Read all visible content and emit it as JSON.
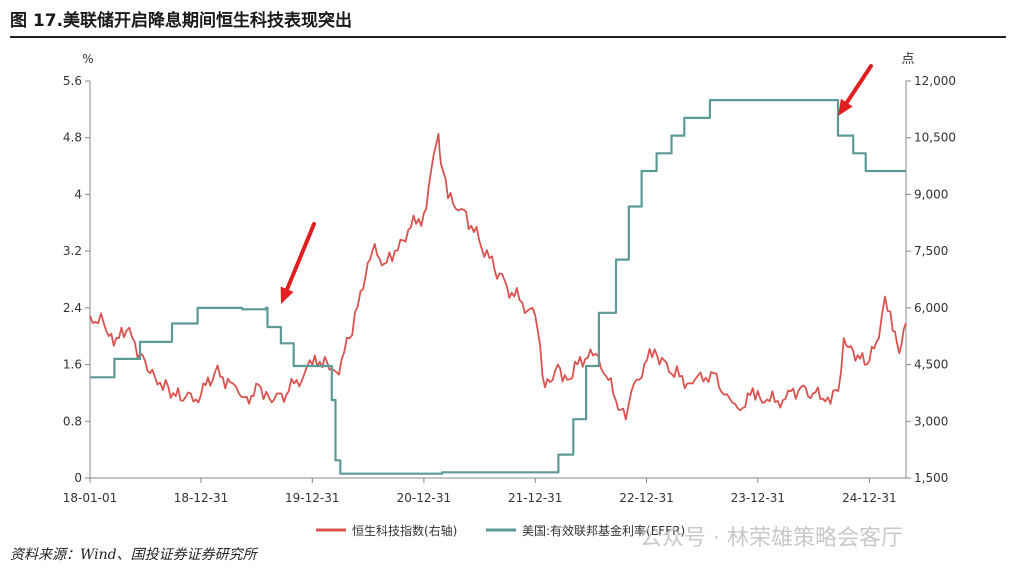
{
  "header": {
    "title": "图 17.美联储开启降息期间恒生科技表现突出"
  },
  "footer": {
    "source": "资料来源：Wind、国投证券证券研究所",
    "watermark": "公众号 · 林荣雄策略会客厅"
  },
  "colors": {
    "hstech": "#d9534f",
    "effr": "#5b9a97",
    "axis": "#888888",
    "arrow": "#e02020"
  },
  "chart_data": {
    "type": "line",
    "left_axis_unit": "%",
    "right_axis_unit": "点",
    "ylim_left": [
      0,
      5.6
    ],
    "ylim_right": [
      1500,
      12000
    ],
    "yticks_left": [
      "0",
      "0.8",
      "1.6",
      "2.4",
      "3.2",
      "4",
      "4.8",
      "5.6"
    ],
    "yticks_right": [
      "1,500",
      "3,000",
      "4,500",
      "6,000",
      "7,500",
      "9,000",
      "10,500",
      "12,000"
    ],
    "x_ticks": [
      "18-01-01",
      "18-12-31",
      "19-12-31",
      "20-12-31",
      "21-12-31",
      "22-12-31",
      "23-12-31",
      "24-12-31"
    ],
    "xlim": [
      "2018-01-01",
      "2025-04-30"
    ],
    "legend_position": "bottom",
    "series": [
      {
        "name": "恒生科技指数(右轴)",
        "axis": "right",
        "x": [
          "2018-01-01",
          "2018-02-15",
          "2018-03-20",
          "2018-05-01",
          "2018-06-15",
          "2018-08-01",
          "2018-09-15",
          "2018-10-25",
          "2018-12-31",
          "2019-02-15",
          "2019-04-15",
          "2019-05-30",
          "2019-07-15",
          "2019-08-20",
          "2019-10-15",
          "2019-12-31",
          "2020-02-10",
          "2020-03-19",
          "2020-05-01",
          "2020-06-15",
          "2020-07-15",
          "2020-08-31",
          "2020-10-15",
          "2020-12-31",
          "2021-02-17",
          "2021-02-25",
          "2021-03-20",
          "2021-05-10",
          "2021-06-30",
          "2021-08-20",
          "2021-10-15",
          "2021-12-31",
          "2022-02-01",
          "2022-03-15",
          "2022-04-15",
          "2022-06-30",
          "2022-08-20",
          "2022-10-24",
          "2022-11-20",
          "2023-01-27",
          "2023-03-15",
          "2023-05-31",
          "2023-07-31",
          "2023-09-30",
          "2023-10-26",
          "2023-12-31",
          "2024-01-22",
          "2024-03-31",
          "2024-05-20",
          "2024-07-31",
          "2024-09-20",
          "2024-10-08",
          "2024-11-15",
          "2024-12-31",
          "2025-01-31",
          "2025-02-20",
          "2025-03-10",
          "2025-04-08",
          "2025-04-30"
        ],
        "y": [
          5800,
          5600,
          5000,
          5400,
          4800,
          4200,
          3900,
          3550,
          3700,
          4300,
          4000,
          3650,
          3900,
          3500,
          3800,
          4500,
          4700,
          4300,
          5200,
          6500,
          7500,
          7200,
          7800,
          8500,
          10600,
          9800,
          8900,
          8600,
          7800,
          7000,
          6400,
          5800,
          3900,
          4500,
          4100,
          4900,
          4200,
          3050,
          4000,
          4900,
          4300,
          4000,
          4300,
          3600,
          3350,
          3800,
          3500,
          3600,
          3900,
          3600,
          3800,
          5200,
          4600,
          4600,
          5200,
          6300,
          5900,
          4800,
          5600
        ]
      },
      {
        "name": "美国:有效联邦基金利率(EFFR)",
        "axis": "left",
        "x": [
          "2018-01-01",
          "2018-02-01",
          "2018-03-22",
          "2018-06-14",
          "2018-09-27",
          "2018-12-20",
          "2019-05-15",
          "2019-08-01",
          "2019-08-06",
          "2019-09-19",
          "2019-10-31",
          "2020-03-04",
          "2020-03-16",
          "2020-04-01",
          "2021-03-01",
          "2022-03-17",
          "2022-05-05",
          "2022-06-16",
          "2022-07-28",
          "2022-09-22",
          "2022-11-03",
          "2022-12-15",
          "2023-02-02",
          "2023-03-23",
          "2023-05-04",
          "2023-07-27",
          "2024-09-19",
          "2024-11-08",
          "2024-12-19",
          "2025-04-30"
        ],
        "y": [
          1.42,
          1.42,
          1.68,
          1.92,
          2.18,
          2.4,
          2.38,
          2.4,
          2.13,
          1.9,
          1.58,
          1.1,
          0.25,
          0.06,
          0.08,
          0.33,
          0.83,
          1.58,
          2.33,
          3.08,
          3.83,
          4.33,
          4.58,
          4.83,
          5.08,
          5.33,
          4.83,
          4.58,
          4.33,
          4.33
        ]
      }
    ]
  }
}
